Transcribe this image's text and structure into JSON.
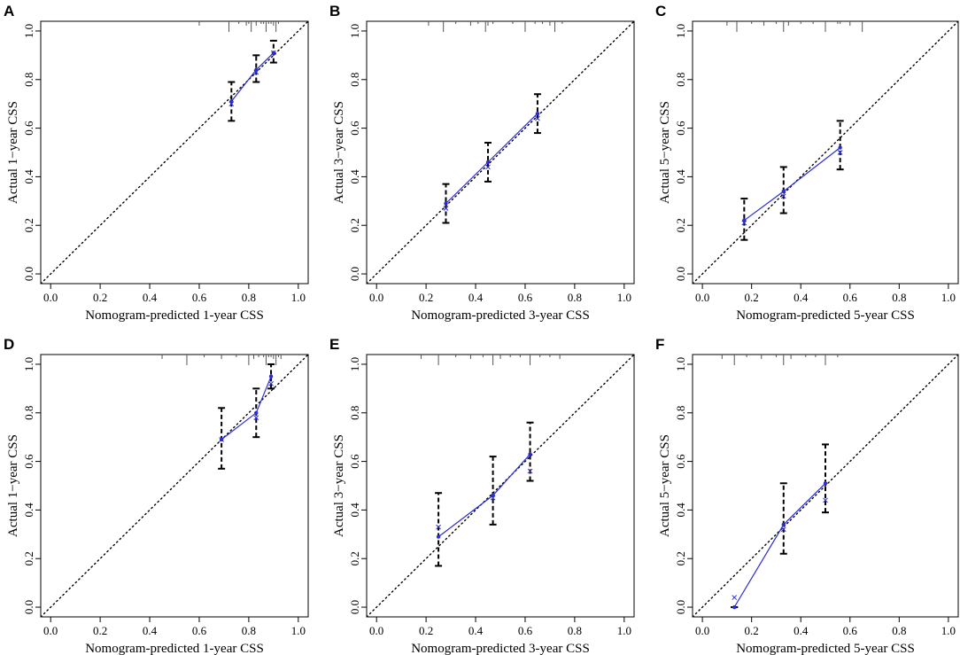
{
  "figure": {
    "colors": {
      "calibration_line": "#2b2bd9",
      "reference_line": "#000000",
      "error_bar": "#000000",
      "rug": "#555555"
    }
  },
  "chart_data": [
    {
      "type": "line",
      "panel": "A",
      "xlabel": "Nomogram-predicted 1-year CSS",
      "ylabel": "Actual 1−year CSS",
      "xlim": [
        0,
        1
      ],
      "ylim": [
        0,
        1
      ],
      "x_ticks": [
        "0.0",
        "0.2",
        "0.4",
        "0.6",
        "0.8",
        "1.0"
      ],
      "y_ticks": [
        "0.0",
        "0.2",
        "0.4",
        "0.6",
        "0.8",
        "1.0"
      ],
      "reference_line": "y = x",
      "series": [
        {
          "name": "calibration",
          "points": [
            {
              "x": 0.73,
              "y": 0.71,
              "lower": 0.63,
              "upper": 0.79,
              "bias_corrected": 0.7
            },
            {
              "x": 0.83,
              "y": 0.84,
              "lower": 0.79,
              "upper": 0.9,
              "bias_corrected": 0.83
            },
            {
              "x": 0.9,
              "y": 0.91,
              "lower": 0.87,
              "upper": 0.96,
              "bias_corrected": 0.91
            }
          ]
        }
      ],
      "rug": [
        0.6,
        0.72,
        0.76,
        0.79,
        0.8,
        0.81,
        0.83,
        0.85,
        0.86,
        0.87,
        0.88,
        0.89,
        0.9,
        0.91,
        0.92
      ]
    },
    {
      "type": "line",
      "panel": "B",
      "xlabel": "Nomogram-predicted 3-year CSS",
      "ylabel": "Actual 3−year CSS",
      "xlim": [
        0,
        1
      ],
      "ylim": [
        0,
        1
      ],
      "x_ticks": [
        "0.0",
        "0.2",
        "0.4",
        "0.6",
        "0.8",
        "1.0"
      ],
      "y_ticks": [
        "0.0",
        "0.2",
        "0.4",
        "0.6",
        "0.8",
        "1.0"
      ],
      "reference_line": "y = x",
      "series": [
        {
          "name": "calibration",
          "points": [
            {
              "x": 0.28,
              "y": 0.29,
              "lower": 0.21,
              "upper": 0.37,
              "bias_corrected": 0.27
            },
            {
              "x": 0.45,
              "y": 0.46,
              "lower": 0.38,
              "upper": 0.54,
              "bias_corrected": 0.44
            },
            {
              "x": 0.65,
              "y": 0.66,
              "lower": 0.58,
              "upper": 0.74,
              "bias_corrected": 0.64
            }
          ]
        }
      ],
      "rug": [
        0.21,
        0.27,
        0.32,
        0.38,
        0.41,
        0.44,
        0.45,
        0.47,
        0.55,
        0.6,
        0.64,
        0.67,
        0.7,
        0.72,
        0.75
      ]
    },
    {
      "type": "line",
      "panel": "C",
      "xlabel": "Nomogram-predicted 5-year CSS",
      "ylabel": "Actual 5−year CSS",
      "xlim": [
        0,
        1
      ],
      "ylim": [
        0,
        1
      ],
      "x_ticks": [
        "0.0",
        "0.2",
        "0.4",
        "0.6",
        "0.8",
        "1.0"
      ],
      "y_ticks": [
        "0.0",
        "0.2",
        "0.4",
        "0.6",
        "0.8",
        "1.0"
      ],
      "reference_line": "y = x",
      "series": [
        {
          "name": "calibration",
          "points": [
            {
              "x": 0.17,
              "y": 0.22,
              "lower": 0.14,
              "upper": 0.31,
              "bias_corrected": 0.21
            },
            {
              "x": 0.33,
              "y": 0.34,
              "lower": 0.25,
              "upper": 0.44,
              "bias_corrected": 0.32
            },
            {
              "x": 0.56,
              "y": 0.52,
              "lower": 0.43,
              "upper": 0.63,
              "bias_corrected": 0.5
            }
          ]
        }
      ],
      "rug": [
        0.1,
        0.14,
        0.2,
        0.25,
        0.3,
        0.33,
        0.35,
        0.4,
        0.45,
        0.5,
        0.55,
        0.56,
        0.6,
        0.65
      ]
    },
    {
      "type": "line",
      "panel": "D",
      "xlabel": "Nomogram-predicted 1-year CSS",
      "ylabel": "Actual 1−year CSS",
      "xlim": [
        0,
        1
      ],
      "ylim": [
        0,
        1
      ],
      "x_ticks": [
        "0.0",
        "0.2",
        "0.4",
        "0.6",
        "0.8",
        "1.0"
      ],
      "y_ticks": [
        "0.0",
        "0.2",
        "0.4",
        "0.6",
        "0.8",
        "1.0"
      ],
      "reference_line": "y = x",
      "series": [
        {
          "name": "calibration",
          "points": [
            {
              "x": 0.69,
              "y": 0.69,
              "lower": 0.57,
              "upper": 0.82,
              "bias_corrected": 0.69
            },
            {
              "x": 0.83,
              "y": 0.8,
              "lower": 0.7,
              "upper": 0.9,
              "bias_corrected": 0.78
            },
            {
              "x": 0.89,
              "y": 0.95,
              "lower": 0.9,
              "upper": 1.0,
              "bias_corrected": 0.92
            }
          ]
        }
      ],
      "rug": [
        0.45,
        0.55,
        0.62,
        0.69,
        0.75,
        0.8,
        0.82,
        0.84,
        0.86,
        0.87,
        0.88,
        0.89,
        0.9,
        0.91,
        0.92,
        0.93
      ]
    },
    {
      "type": "line",
      "panel": "E",
      "xlabel": "Nomogram-predicted 3-year CSS",
      "ylabel": "Actual 3−year CSS",
      "xlim": [
        0,
        1
      ],
      "ylim": [
        0,
        1
      ],
      "x_ticks": [
        "0.0",
        "0.2",
        "0.4",
        "0.6",
        "0.8",
        "1.0"
      ],
      "y_ticks": [
        "0.0",
        "0.2",
        "0.4",
        "0.6",
        "0.8",
        "1.0"
      ],
      "reference_line": "y = x",
      "series": [
        {
          "name": "calibration",
          "points": [
            {
              "x": 0.25,
              "y": 0.29,
              "lower": 0.17,
              "upper": 0.47,
              "bias_corrected": 0.33
            },
            {
              "x": 0.47,
              "y": 0.46,
              "lower": 0.34,
              "upper": 0.62,
              "bias_corrected": 0.45
            },
            {
              "x": 0.62,
              "y": 0.63,
              "lower": 0.52,
              "upper": 0.76,
              "bias_corrected": 0.56
            }
          ]
        }
      ],
      "rug": [
        0.18,
        0.25,
        0.32,
        0.38,
        0.43,
        0.47,
        0.5,
        0.54,
        0.58,
        0.62,
        0.66,
        0.7,
        0.74
      ]
    },
    {
      "type": "line",
      "panel": "F",
      "xlabel": "Nomogram-predicted 5-year CSS",
      "ylabel": "Actual 5−year CSS",
      "xlim": [
        0,
        1
      ],
      "ylim": [
        0,
        1
      ],
      "x_ticks": [
        "0.0",
        "0.2",
        "0.4",
        "0.6",
        "0.8",
        "1.0"
      ],
      "y_ticks": [
        "0.0",
        "0.2",
        "0.4",
        "0.6",
        "0.8",
        "1.0"
      ],
      "reference_line": "y = x",
      "series": [
        {
          "name": "calibration",
          "points": [
            {
              "x": 0.13,
              "y": 0.0,
              "lower": 0.0,
              "upper": 0.0,
              "bias_corrected": 0.04
            },
            {
              "x": 0.33,
              "y": 0.34,
              "lower": 0.22,
              "upper": 0.51,
              "bias_corrected": 0.32
            },
            {
              "x": 0.5,
              "y": 0.51,
              "lower": 0.39,
              "upper": 0.67,
              "bias_corrected": 0.44
            }
          ]
        }
      ],
      "rug": [
        0.08,
        0.13,
        0.18,
        0.24,
        0.3,
        0.33,
        0.36,
        0.42,
        0.46,
        0.5,
        0.55
      ]
    }
  ]
}
